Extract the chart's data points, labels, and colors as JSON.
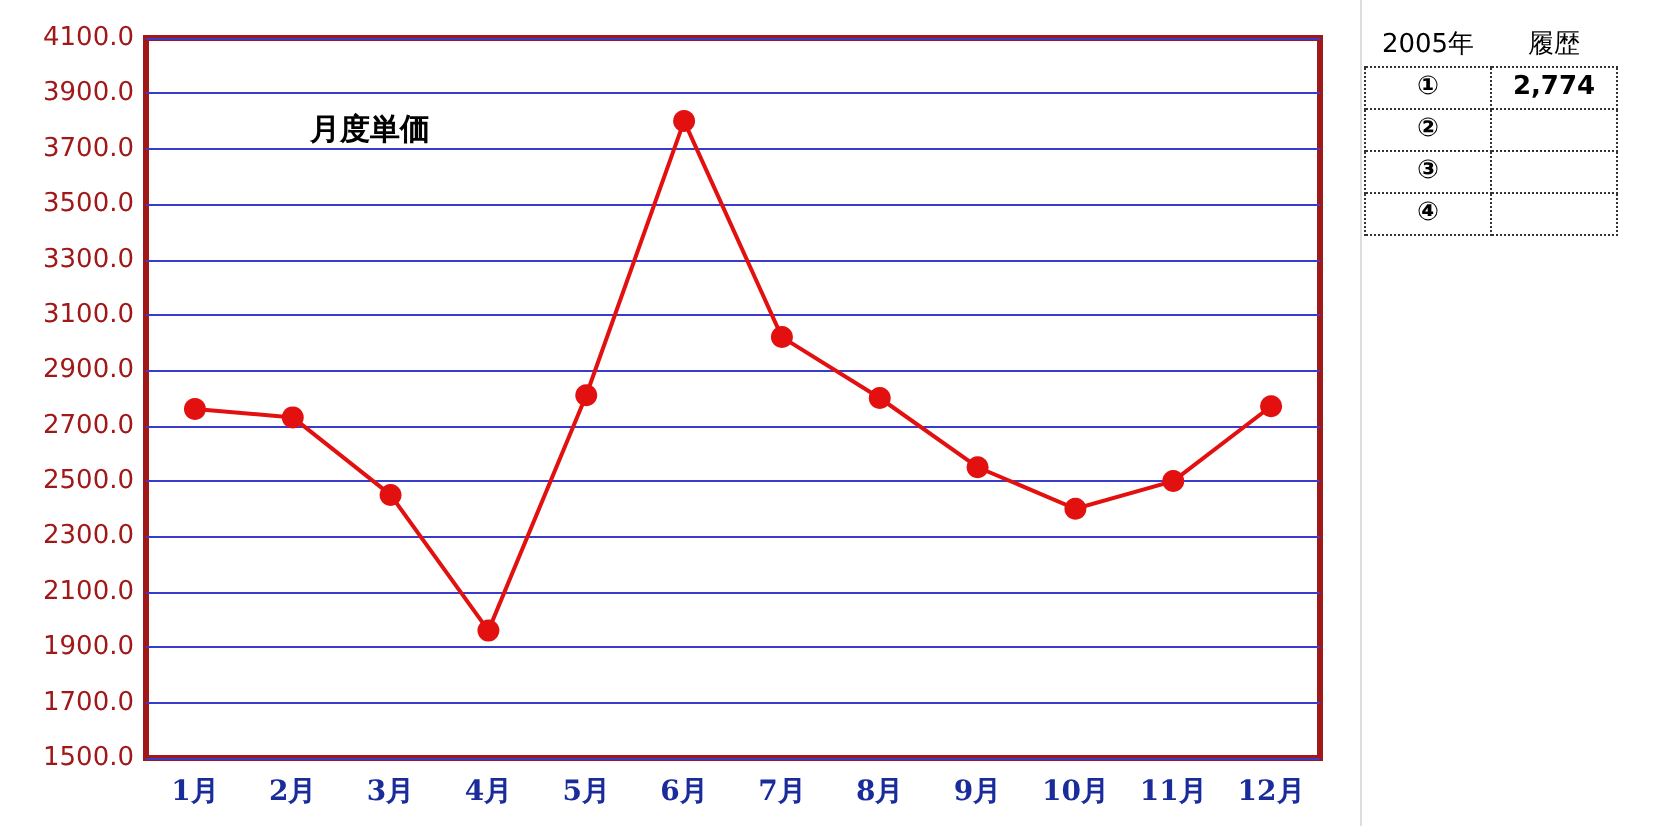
{
  "chart_data": {
    "type": "line",
    "title": "月度単価",
    "categories": [
      "1月",
      "2月",
      "3月",
      "4月",
      "5月",
      "6月",
      "7月",
      "8月",
      "9月",
      "10月",
      "11月",
      "12月"
    ],
    "series": [
      {
        "color": "#e31010",
        "values": [
          2760,
          2730,
          2450,
          1960,
          2810,
          3800,
          3020,
          2800,
          2550,
          2400,
          2500,
          2770
        ]
      }
    ],
    "ylim": [
      1500,
      4100
    ],
    "yticks": [
      {
        "value": 1500,
        "label": "1500.0"
      },
      {
        "value": 1700,
        "label": "1700.0"
      },
      {
        "value": 1900,
        "label": "1900.0"
      },
      {
        "value": 2100,
        "label": "2100.0"
      },
      {
        "value": 2300,
        "label": "2300.0"
      },
      {
        "value": 2500,
        "label": "2500.0"
      },
      {
        "value": 2700,
        "label": "2700.0"
      },
      {
        "value": 2900,
        "label": "2900.0"
      },
      {
        "value": 3100,
        "label": "3100.0"
      },
      {
        "value": 3300,
        "label": "3300.0"
      },
      {
        "value": 3500,
        "label": "3500.0"
      },
      {
        "value": 3700,
        "label": "3700.0"
      },
      {
        "value": 3900,
        "label": "3900.0"
      },
      {
        "value": 4100,
        "label": "4100.0"
      }
    ],
    "grid": "y",
    "marker": "circle",
    "line_style": "solid",
    "annotations": [
      "2005年",
      "履歴",
      "①",
      "2,774",
      "②",
      "③",
      "④"
    ]
  }
}
